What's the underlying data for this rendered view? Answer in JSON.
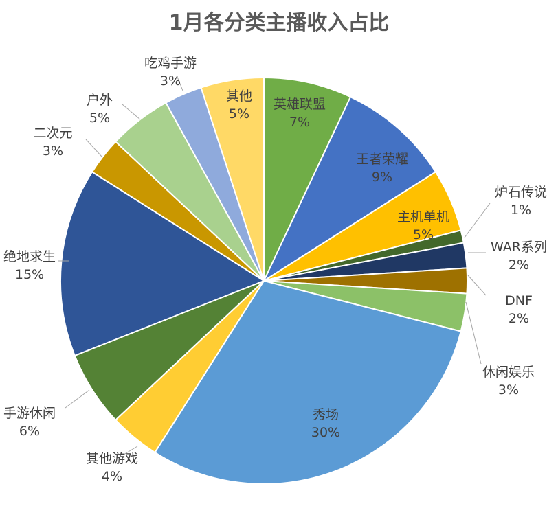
{
  "chart_data": {
    "type": "pie",
    "title": "1月各分类主播收入占比",
    "slices": [
      {
        "label": "英雄联盟",
        "value": 7,
        "display": "7%",
        "color": "#70ad47"
      },
      {
        "label": "王者荣耀",
        "value": 9,
        "display": "9%",
        "color": "#4472c4"
      },
      {
        "label": "主机单机",
        "value": 5,
        "display": "5%",
        "color": "#ffc000"
      },
      {
        "label": "炉石传说",
        "value": 1,
        "display": "1%",
        "color": "#43682b"
      },
      {
        "label": "WAR系列",
        "value": 2,
        "display": "2%",
        "color": "#203864"
      },
      {
        "label": "DNF",
        "value": 2,
        "display": "2%",
        "color": "#9e7100"
      },
      {
        "label": "休闲娱乐",
        "value": 3,
        "display": "3%",
        "color": "#8cc168"
      },
      {
        "label": "秀场",
        "value": 30,
        "display": "30%",
        "color": "#5b9bd5"
      },
      {
        "label": "其他游戏",
        "value": 4,
        "display": "4%",
        "color": "#ffcd33"
      },
      {
        "label": "手游休闲",
        "value": 6,
        "display": "6%",
        "color": "#548235"
      },
      {
        "label": "绝地求生",
        "value": 15,
        "display": "15%",
        "color": "#2f5597"
      },
      {
        "label": "二次元",
        "value": 3,
        "display": "3%",
        "color": "#c99700"
      },
      {
        "label": "户外",
        "value": 5,
        "display": "5%",
        "color": "#a9d18e"
      },
      {
        "label": "吃鸡手游",
        "value": 3,
        "display": "3%",
        "color": "#8faadc"
      },
      {
        "label": "其他",
        "value": 5,
        "display": "5%",
        "color": "#ffd966"
      }
    ]
  }
}
